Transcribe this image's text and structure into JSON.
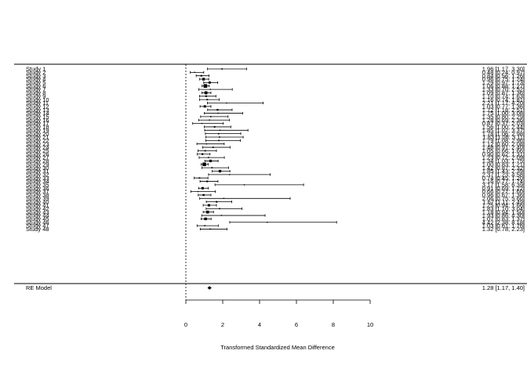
{
  "chart_data": {
    "type": "forest",
    "xlabel": "Transformed Standardized Mean Difference",
    "xlim": [
      0,
      10
    ],
    "xticks": [
      "0",
      "2",
      "4",
      "6",
      "8",
      "10"
    ],
    "reference_line": 0,
    "studies": [
      {
        "label": "Study 1",
        "est": 1.96,
        "lo": 1.17,
        "hi": 3.3,
        "text": "1.96 [1.17, 3.30]"
      },
      {
        "label": "Study 2",
        "est": 0.48,
        "lo": 0.24,
        "hi": 0.97,
        "text": "0.48 [0.24, 0.97]"
      },
      {
        "label": "Study 3",
        "est": 0.84,
        "lo": 0.56,
        "hi": 1.26,
        "text": "0.84 [0.56, 1.26]"
      },
      {
        "label": "Study 4",
        "est": 0.96,
        "lo": 0.75,
        "hi": 1.24,
        "text": "0.96 [0.75, 1.24]"
      },
      {
        "label": "Study 5",
        "est": 1.29,
        "lo": 0.97,
        "hi": 1.73,
        "text": "1.29 [0.97, 1.73]"
      },
      {
        "label": "Study 6",
        "est": 1.06,
        "lo": 0.88,
        "hi": 1.27,
        "text": "1.06 [0.88, 1.27]"
      },
      {
        "label": "Study 7",
        "est": 1.33,
        "lo": 0.7,
        "hi": 2.52,
        "text": "1.33 [0.70, 2.52]"
      },
      {
        "label": "Study 8",
        "est": 1.09,
        "lo": 0.87,
        "hi": 1.36,
        "text": "1.09 [0.87, 1.36]"
      },
      {
        "label": "Study 9",
        "est": 1.1,
        "lo": 0.74,
        "hi": 1.63,
        "text": "1.10 [0.74, 1.63]"
      },
      {
        "label": "Study 10",
        "est": 1.16,
        "lo": 0.74,
        "hi": 1.81,
        "text": "1.16 [0.74, 1.81]"
      },
      {
        "label": "Study 11",
        "est": 2.21,
        "lo": 1.17,
        "hi": 4.2,
        "text": "2.21 [1.17, 4.20]"
      },
      {
        "label": "Study 12",
        "est": 1.03,
        "lo": 0.77,
        "hi": 1.36,
        "text": "1.03 [0.77, 1.36]"
      },
      {
        "label": "Study 13",
        "est": 1.72,
        "lo": 1.18,
        "hi": 2.51,
        "text": "1.72 [1.18, 2.51]"
      },
      {
        "label": "Study 14",
        "est": 1.75,
        "lo": 1.0,
        "hi": 3.08,
        "text": "1.75 [1.00, 3.08]"
      },
      {
        "label": "Study 15",
        "est": 1.35,
        "lo": 0.8,
        "hi": 2.29,
        "text": "1.35 [0.80, 2.29]"
      },
      {
        "label": "Study 16",
        "est": 1.28,
        "lo": 0.69,
        "hi": 2.36,
        "text": "1.28 [0.69, 2.36]"
      },
      {
        "label": "Study 17",
        "est": 0.87,
        "lo": 0.37,
        "hi": 2.03,
        "text": "0.87 [0.37, 2.03]"
      },
      {
        "label": "Study 18",
        "est": 1.56,
        "lo": 1.0,
        "hi": 2.44,
        "text": "1.56 [1.00, 2.44]"
      },
      {
        "label": "Study 19",
        "est": 1.85,
        "lo": 1.02,
        "hi": 3.37,
        "text": "1.85 [1.02, 3.37]"
      },
      {
        "label": "Study 20",
        "est": 1.78,
        "lo": 1.06,
        "hi": 2.98,
        "text": "1.78 [1.06, 2.98]"
      },
      {
        "label": "Study 21",
        "est": 1.83,
        "lo": 1.08,
        "hi": 3.11,
        "text": "1.83 [1.08, 3.11]"
      },
      {
        "label": "Study 22",
        "est": 1.79,
        "lo": 1.08,
        "hi": 2.96,
        "text": "1.79 [1.08, 2.96]"
      },
      {
        "label": "Study 23",
        "est": 1.12,
        "lo": 0.6,
        "hi": 2.08,
        "text": "1.12 [0.60, 2.08]"
      },
      {
        "label": "Study 24",
        "est": 1.48,
        "lo": 0.91,
        "hi": 2.4,
        "text": "1.48 [0.91, 2.40]"
      },
      {
        "label": "Study 25",
        "est": 1.05,
        "lo": 0.66,
        "hi": 1.66,
        "text": "1.05 [0.66, 1.66]"
      },
      {
        "label": "Study 26",
        "est": 0.9,
        "lo": 0.62,
        "hi": 1.31,
        "text": "0.90 [0.62, 1.31]"
      },
      {
        "label": "Study 27",
        "est": 1.23,
        "lo": 0.72,
        "hi": 2.09,
        "text": "1.23 [0.72, 2.09]"
      },
      {
        "label": "Study 28",
        "est": 1.34,
        "lo": 1.03,
        "hi": 1.75,
        "text": "1.34 [1.03, 1.75]"
      },
      {
        "label": "Study 29",
        "est": 1.0,
        "lo": 0.83,
        "hi": 1.21,
        "text": "1.00 [0.83, 1.21]"
      },
      {
        "label": "Study 30",
        "est": 1.42,
        "lo": 0.87,
        "hi": 2.32,
        "text": "1.42 [0.87, 2.32]"
      },
      {
        "label": "Study 31",
        "est": 1.85,
        "lo": 1.43,
        "hi": 2.39,
        "text": "1.85 [1.43, 2.39]"
      },
      {
        "label": "Study 32",
        "est": 2.37,
        "lo": 1.23,
        "hi": 4.58,
        "text": "2.37 [1.23, 4.58]"
      },
      {
        "label": "Study 33",
        "est": 0.74,
        "lo": 0.45,
        "hi": 1.2,
        "text": "0.74 [0.45, 1.20]"
      },
      {
        "label": "Study 34",
        "est": 1.16,
        "lo": 0.77,
        "hi": 1.74,
        "text": "1.16 [0.77, 1.74]"
      },
      {
        "label": "Study 35",
        "est": 3.17,
        "lo": 1.58,
        "hi": 6.39,
        "text": "3.17 [1.58, 6.39]"
      },
      {
        "label": "Study 36",
        "est": 0.91,
        "lo": 0.69,
        "hi": 1.22,
        "text": "0.91 [0.69, 1.22]"
      },
      {
        "label": "Study 37",
        "est": 0.66,
        "lo": 0.27,
        "hi": 1.6,
        "text": "0.66 [0.27, 1.60]"
      },
      {
        "label": "Study 38",
        "est": 0.96,
        "lo": 0.67,
        "hi": 1.36,
        "text": "0.96 [0.67, 1.36]"
      },
      {
        "label": "Study 39",
        "est": 2.06,
        "lo": 0.75,
        "hi": 5.66,
        "text": "2.06 [0.75, 5.66]"
      },
      {
        "label": "Study 40",
        "est": 1.67,
        "lo": 1.11,
        "hi": 2.49,
        "text": "1.67 [1.11, 2.49]"
      },
      {
        "label": "Study 41",
        "est": 1.25,
        "lo": 0.94,
        "hi": 1.66,
        "text": "1.25 [0.94, 1.66]"
      },
      {
        "label": "Study 42",
        "est": 1.83,
        "lo": 1.1,
        "hi": 3.04,
        "text": "1.83 [1.10, 3.04]"
      },
      {
        "label": "Study 43",
        "est": 1.18,
        "lo": 0.94,
        "hi": 1.5,
        "text": "1.18 [0.94, 1.50]"
      },
      {
        "label": "Study 44",
        "est": 1.93,
        "lo": 0.86,
        "hi": 4.3,
        "text": "1.93 [0.86, 4.30]"
      },
      {
        "label": "Study 45",
        "est": 1.07,
        "lo": 0.83,
        "hi": 1.37,
        "text": "1.07 [0.83, 1.37]"
      },
      {
        "label": "Study 46",
        "est": 4.42,
        "lo": 2.38,
        "hi": 8.18,
        "text": "4.42 [2.38, 8.18]"
      },
      {
        "label": "Study 47",
        "est": 1.03,
        "lo": 0.61,
        "hi": 1.76,
        "text": "1.03 [0.61, 1.76]"
      },
      {
        "label": "Study 48",
        "est": 1.32,
        "lo": 0.78,
        "hi": 2.23,
        "text": "1.32 [0.78, 2.23]"
      }
    ],
    "summary": {
      "label": "RE Model",
      "est": 1.28,
      "lo": 1.17,
      "hi": 1.4,
      "text": "1.28 [1.17, 1.40]"
    }
  }
}
